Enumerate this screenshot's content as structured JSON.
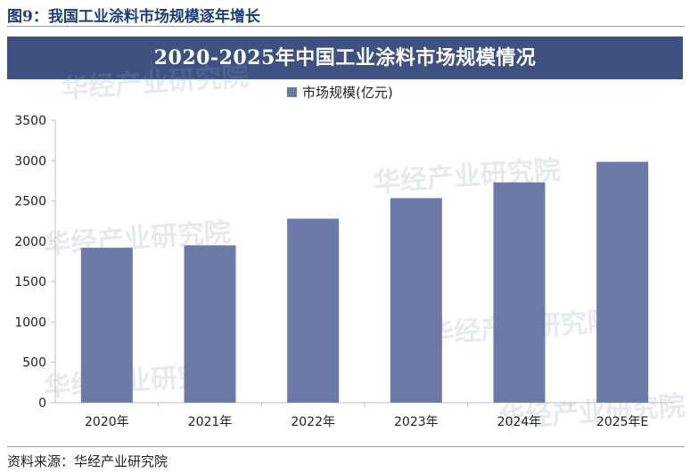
{
  "heading": "图9：我国工业涂料市场规模逐年增长",
  "source_note": "资料来源：华经产业研究院",
  "watermark_text": "华经产业研究院",
  "colors": {
    "bar": "#6b7aa6",
    "title_band": "#3f5180",
    "heading": "#1f3f7a"
  },
  "chart_data": {
    "type": "bar",
    "title": "2020-2025年中国工业涂料市场规模情况",
    "categories": [
      "2020年",
      "2021年",
      "2022年",
      "2023年",
      "2024年",
      "2025年E"
    ],
    "series": [
      {
        "name": "市场规模(亿元)",
        "values": [
          1920,
          1950,
          2280,
          2535,
          2730,
          2985
        ]
      }
    ],
    "xlabel": "",
    "ylabel": "",
    "ylim": [
      0,
      3500
    ],
    "yticks": [
      0,
      500,
      1000,
      1500,
      2000,
      2500,
      3000,
      3500
    ],
    "grid": false,
    "legend_position": "top-center"
  }
}
